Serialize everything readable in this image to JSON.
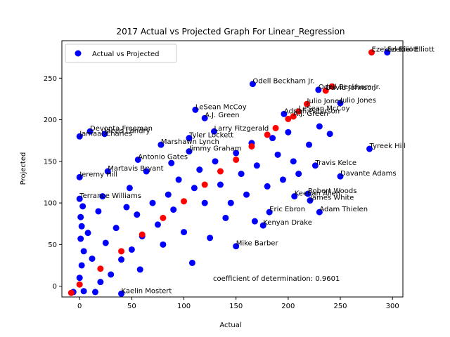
{
  "chart_data": {
    "type": "scatter",
    "title": "2017 Actual vs Projected Graph For Linear_Regression",
    "xlabel": "Actual",
    "ylabel": "Projected",
    "xlim": [
      -17,
      310
    ],
    "ylim": [
      -13,
      295
    ],
    "xticks": [
      0,
      50,
      100,
      150,
      200,
      250,
      300
    ],
    "yticks": [
      0,
      50,
      100,
      150,
      200,
      250
    ],
    "grid": false,
    "legend": {
      "placement": "top-left",
      "entries": [
        {
          "label": "Actual vs Projected",
          "color": "#0000ff"
        }
      ]
    },
    "annotation": "coefficient of determination: 0.9601",
    "series": [
      {
        "name": "Actual vs Projected",
        "color": "#0000ff",
        "points": [
          {
            "x": 295,
            "y": 281,
            "label": "Ezekiel Elliott"
          },
          {
            "x": 166,
            "y": 243,
            "label": "Odell Beckham Jr."
          },
          {
            "x": 229,
            "y": 236,
            "label": "Odell Beckham Jr."
          },
          {
            "x": 250,
            "y": 220,
            "label": "Julio Jones"
          },
          {
            "x": 111,
            "y": 212,
            "label": "LeSean McCoy"
          },
          {
            "x": 120,
            "y": 202,
            "label": "A.J. Green"
          },
          {
            "x": 196,
            "y": 207,
            "label": "Adrian Peterson"
          },
          {
            "x": 10,
            "y": 186,
            "label": "Devonta Freeman"
          },
          {
            "x": 0,
            "y": 180,
            "label": "Jamaal Charles"
          },
          {
            "x": 24,
            "y": 183,
            "label": "Jarvis Landry"
          },
          {
            "x": 105,
            "y": 178,
            "label": "Tyler Lockett"
          },
          {
            "x": 129,
            "y": 186,
            "label": "Larry Fitzgerald"
          },
          {
            "x": 278,
            "y": 165,
            "label": "Tyreek Hill"
          },
          {
            "x": 226,
            "y": 145,
            "label": "Travis Kelce"
          },
          {
            "x": 250,
            "y": 132,
            "label": "Davante Adams"
          },
          {
            "x": 219,
            "y": 111,
            "label": "Robert Woods"
          },
          {
            "x": 206,
            "y": 108,
            "label": "Keenan Allen"
          },
          {
            "x": 221,
            "y": 103,
            "label": "James White"
          },
          {
            "x": 230,
            "y": 89,
            "label": "Adam Thielen"
          },
          {
            "x": 182,
            "y": 89,
            "label": "Eric Ebron"
          },
          {
            "x": 176,
            "y": 73,
            "label": "Kenyan Drake"
          },
          {
            "x": 150,
            "y": 48,
            "label": "Mike Barber"
          },
          {
            "x": 56,
            "y": 152,
            "label": "Antonio Gates"
          },
          {
            "x": 78,
            "y": 170,
            "label": "Marshawn Lynch"
          },
          {
            "x": 105,
            "y": 162,
            "label": "Jimmy Graham"
          },
          {
            "x": 27,
            "y": 138,
            "label": "Martavis Bryant"
          },
          {
            "x": 0,
            "y": 131,
            "label": "Jeremy Hill"
          },
          {
            "x": 0,
            "y": 105,
            "label": "Terrance Williams"
          },
          {
            "x": 40,
            "y": -9,
            "label": "Kaelin Mostert"
          },
          {
            "x": -6,
            "y": -7,
            "label": ""
          },
          {
            "x": 4,
            "y": -6,
            "label": ""
          },
          {
            "x": 15,
            "y": -7,
            "label": ""
          },
          {
            "x": 0,
            "y": 10,
            "label": ""
          },
          {
            "x": 2,
            "y": 25,
            "label": ""
          },
          {
            "x": 4,
            "y": 42,
            "label": ""
          },
          {
            "x": 1,
            "y": 57,
            "label": ""
          },
          {
            "x": 2,
            "y": 72,
            "label": ""
          },
          {
            "x": 1,
            "y": 83,
            "label": ""
          },
          {
            "x": 3,
            "y": 96,
            "label": ""
          },
          {
            "x": 20,
            "y": 5,
            "label": ""
          },
          {
            "x": 30,
            "y": 14,
            "label": ""
          },
          {
            "x": 12,
            "y": 33,
            "label": ""
          },
          {
            "x": 25,
            "y": 52,
            "label": ""
          },
          {
            "x": 40,
            "y": 32,
            "label": ""
          },
          {
            "x": 35,
            "y": 70,
            "label": ""
          },
          {
            "x": 50,
            "y": 44,
            "label": ""
          },
          {
            "x": 55,
            "y": 86,
            "label": ""
          },
          {
            "x": 60,
            "y": 60,
            "label": ""
          },
          {
            "x": 70,
            "y": 100,
            "label": ""
          },
          {
            "x": 75,
            "y": 74,
            "label": ""
          },
          {
            "x": 85,
            "y": 110,
            "label": ""
          },
          {
            "x": 90,
            "y": 92,
            "label": ""
          },
          {
            "x": 95,
            "y": 128,
            "label": ""
          },
          {
            "x": 100,
            "y": 65,
            "label": ""
          },
          {
            "x": 110,
            "y": 118,
            "label": ""
          },
          {
            "x": 115,
            "y": 140,
            "label": ""
          },
          {
            "x": 120,
            "y": 100,
            "label": ""
          },
          {
            "x": 130,
            "y": 150,
            "label": ""
          },
          {
            "x": 135,
            "y": 122,
            "label": ""
          },
          {
            "x": 140,
            "y": 82,
            "label": ""
          },
          {
            "x": 150,
            "y": 160,
            "label": ""
          },
          {
            "x": 155,
            "y": 135,
            "label": ""
          },
          {
            "x": 160,
            "y": 110,
            "label": ""
          },
          {
            "x": 165,
            "y": 172,
            "label": ""
          },
          {
            "x": 170,
            "y": 145,
            "label": ""
          },
          {
            "x": 180,
            "y": 120,
            "label": ""
          },
          {
            "x": 185,
            "y": 178,
            "label": ""
          },
          {
            "x": 190,
            "y": 158,
            "label": ""
          },
          {
            "x": 195,
            "y": 128,
            "label": ""
          },
          {
            "x": 200,
            "y": 185,
            "label": ""
          },
          {
            "x": 205,
            "y": 150,
            "label": ""
          },
          {
            "x": 210,
            "y": 135,
            "label": ""
          },
          {
            "x": 220,
            "y": 170,
            "label": ""
          },
          {
            "x": 230,
            "y": 192,
            "label": ""
          },
          {
            "x": 240,
            "y": 183,
            "label": ""
          },
          {
            "x": 108,
            "y": 28,
            "label": ""
          },
          {
            "x": 48,
            "y": 118,
            "label": ""
          },
          {
            "x": 64,
            "y": 138,
            "label": ""
          },
          {
            "x": 88,
            "y": 148,
            "label": ""
          },
          {
            "x": 18,
            "y": 90,
            "label": ""
          },
          {
            "x": 8,
            "y": 64,
            "label": ""
          },
          {
            "x": 22,
            "y": 108,
            "label": ""
          },
          {
            "x": 45,
            "y": 95,
            "label": ""
          },
          {
            "x": 58,
            "y": 20,
            "label": ""
          },
          {
            "x": 80,
            "y": 50,
            "label": ""
          },
          {
            "x": 125,
            "y": 58,
            "label": ""
          },
          {
            "x": 145,
            "y": 100,
            "label": ""
          },
          {
            "x": 168,
            "y": 78,
            "label": ""
          }
        ]
      },
      {
        "name": "",
        "color": "#ff0000",
        "points": [
          {
            "x": 280,
            "y": 281,
            "label": "Ezekiel Elliott"
          },
          {
            "x": 236,
            "y": 235,
            "label": "David Johnson"
          },
          {
            "x": 242,
            "y": 240,
            "label": ""
          },
          {
            "x": 218,
            "y": 219,
            "label": "Julio Jones"
          },
          {
            "x": 210,
            "y": 210,
            "label": "LeSean McCoy"
          },
          {
            "x": 205,
            "y": 204,
            "label": "A.J. Green"
          },
          {
            "x": 200,
            "y": 201,
            "label": ""
          },
          {
            "x": 188,
            "y": 190,
            "label": ""
          },
          {
            "x": 180,
            "y": 182,
            "label": ""
          },
          {
            "x": 165,
            "y": 168,
            "label": ""
          },
          {
            "x": 150,
            "y": 152,
            "label": ""
          },
          {
            "x": 135,
            "y": 138,
            "label": ""
          },
          {
            "x": 120,
            "y": 122,
            "label": ""
          },
          {
            "x": 100,
            "y": 102,
            "label": ""
          },
          {
            "x": 80,
            "y": 82,
            "label": ""
          },
          {
            "x": 60,
            "y": 62,
            "label": ""
          },
          {
            "x": 40,
            "y": 42,
            "label": ""
          },
          {
            "x": 20,
            "y": 21,
            "label": ""
          },
          {
            "x": 0,
            "y": 2,
            "label": ""
          },
          {
            "x": -8,
            "y": -8,
            "label": ""
          }
        ]
      }
    ]
  }
}
